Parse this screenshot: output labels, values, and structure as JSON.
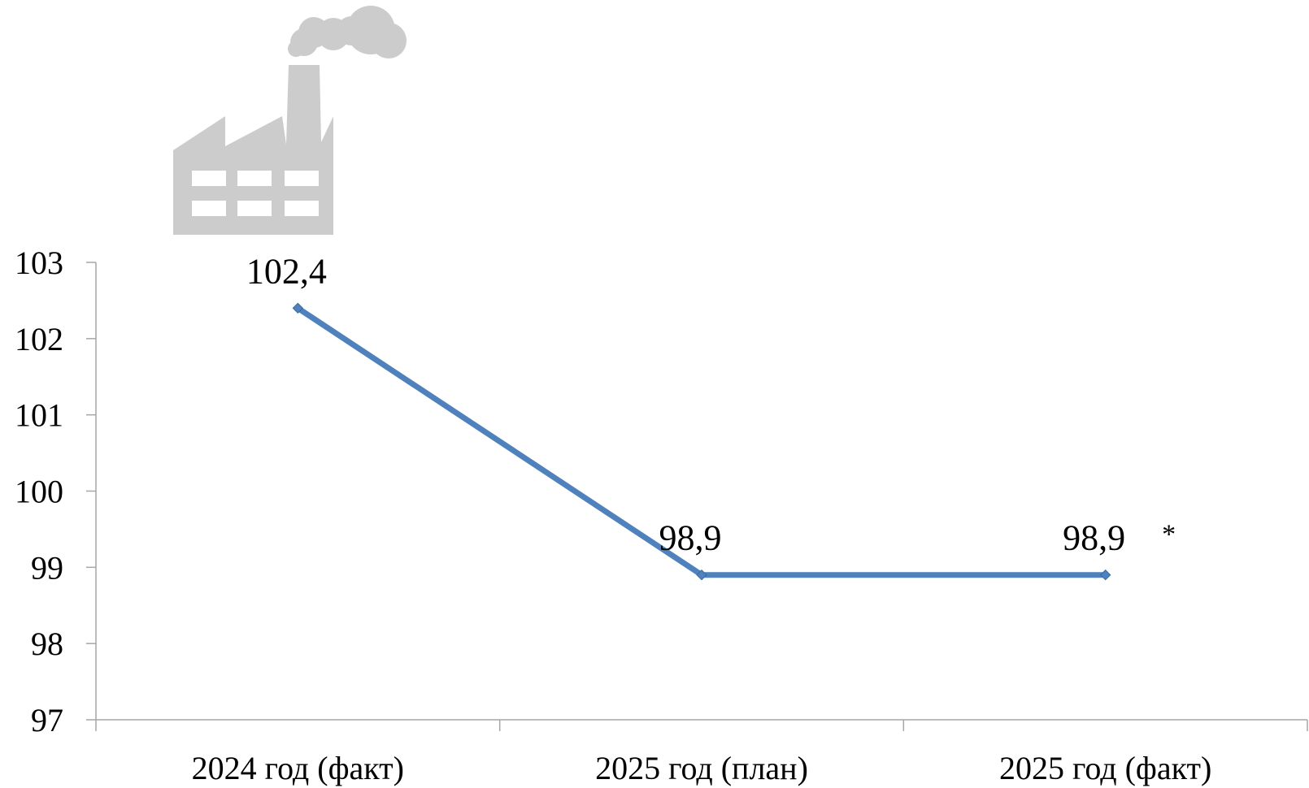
{
  "chart_data": {
    "type": "line",
    "title": "",
    "xlabel": "",
    "ylabel": "",
    "categories": [
      "2024 год (факт)",
      "2025 год (план)",
      "2025 год (факт)"
    ],
    "series": [
      {
        "values": [
          102.4,
          98.9,
          98.9
        ],
        "data_labels": [
          "102,4",
          "98,9",
          "98,9"
        ],
        "color": "#4F81BD",
        "marker": "diamond"
      }
    ],
    "ylim": [
      97,
      103
    ],
    "y_ticks": [
      97,
      98,
      99,
      100,
      101,
      102,
      103
    ],
    "y_tick_labels": [
      "97",
      "98",
      "99",
      "100",
      "101",
      "102",
      "103"
    ],
    "grid": false,
    "legend": "none",
    "annotations": [
      {
        "category_index": 2,
        "text": "*"
      }
    ],
    "decoration": {
      "icon": "factory-icon",
      "color": "#CCCCCC"
    },
    "axis_color": "#A6A6A6"
  }
}
